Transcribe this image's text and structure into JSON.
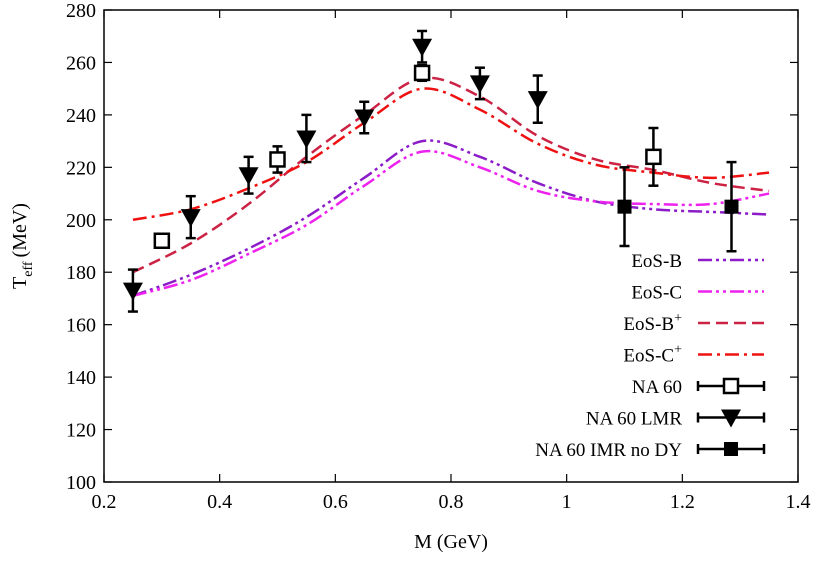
{
  "chart_data": {
    "type": "line",
    "title": "",
    "xlabel": "M (GeV)",
    "ylabel": "T",
    "ylabel_subscript": "eff",
    "ylabel_unit": "(MeV)",
    "xlim": [
      0.2,
      1.4
    ],
    "ylim": [
      100,
      280
    ],
    "xticks": [
      0.2,
      0.4,
      0.6,
      0.8,
      1,
      1.2,
      1.4
    ],
    "xtick_labels": [
      "0.2",
      "0.4",
      "0.6",
      "0.8",
      "1",
      "1.2",
      "1.4"
    ],
    "yticks": [
      100,
      120,
      140,
      160,
      180,
      200,
      220,
      240,
      260,
      280
    ],
    "ytick_labels": [
      "100",
      "120",
      "140",
      "160",
      "180",
      "200",
      "220",
      "240",
      "260",
      "280"
    ],
    "grid": false,
    "legend_position": "bottom-right",
    "series": [
      {
        "name": "EoS-B",
        "kind": "line",
        "color": "#8b1cc8",
        "dash": "dash-dot-dot",
        "x": [
          0.25,
          0.35,
          0.45,
          0.55,
          0.65,
          0.75,
          0.85,
          0.95,
          1.05,
          1.15,
          1.25,
          1.35
        ],
        "y": [
          171,
          179,
          189,
          201,
          216,
          230,
          224,
          214,
          207,
          204,
          203,
          202
        ]
      },
      {
        "name": "EoS-C",
        "kind": "line",
        "color": "#ee22ee",
        "dash": "dash-dot-dot",
        "x": [
          0.25,
          0.35,
          0.45,
          0.55,
          0.65,
          0.75,
          0.85,
          0.95,
          1.05,
          1.15,
          1.25,
          1.35
        ],
        "y": [
          171,
          177,
          187,
          198,
          213,
          226,
          220,
          211,
          207,
          206,
          206,
          210
        ]
      },
      {
        "name": "EoS-B",
        "name_sup": "+",
        "kind": "line",
        "color": "#cc2244",
        "dash": "dash",
        "x": [
          0.25,
          0.35,
          0.45,
          0.55,
          0.65,
          0.75,
          0.85,
          0.95,
          1.05,
          1.15,
          1.25,
          1.35
        ],
        "y": [
          180,
          191,
          206,
          224,
          240,
          254,
          247,
          232,
          223,
          219,
          214,
          211
        ]
      },
      {
        "name": "EoS-C",
        "name_sup": "+",
        "kind": "line",
        "color": "#ee1111",
        "dash": "dash-dot",
        "x": [
          0.25,
          0.35,
          0.45,
          0.55,
          0.65,
          0.75,
          0.85,
          0.95,
          1.05,
          1.15,
          1.25,
          1.35
        ],
        "y": [
          200,
          204,
          212,
          222,
          237,
          250,
          242,
          229,
          221,
          218,
          216,
          218
        ]
      },
      {
        "name": "NA 60",
        "kind": "points",
        "marker": "open-square",
        "color": "#000000",
        "x": [
          0.3,
          0.5,
          0.75,
          1.15
        ],
        "y": [
          192,
          223,
          256,
          224
        ],
        "err": [
          2,
          5,
          3,
          11
        ]
      },
      {
        "name": "NA 60 LMR",
        "kind": "points",
        "marker": "filled-triangle-down",
        "color": "#000000",
        "x": [
          0.25,
          0.35,
          0.45,
          0.55,
          0.65,
          0.75,
          0.85,
          0.95
        ],
        "y": [
          173,
          201,
          217,
          231,
          239,
          266,
          252,
          246
        ],
        "err": [
          8,
          8,
          7,
          9,
          6,
          6,
          6,
          9
        ]
      },
      {
        "name": "NA 60 IMR no DY",
        "kind": "points",
        "marker": "filled-square",
        "color": "#000000",
        "x": [
          1.1,
          1.285
        ],
        "y": [
          205,
          205
        ],
        "err": [
          15,
          17
        ]
      }
    ]
  }
}
